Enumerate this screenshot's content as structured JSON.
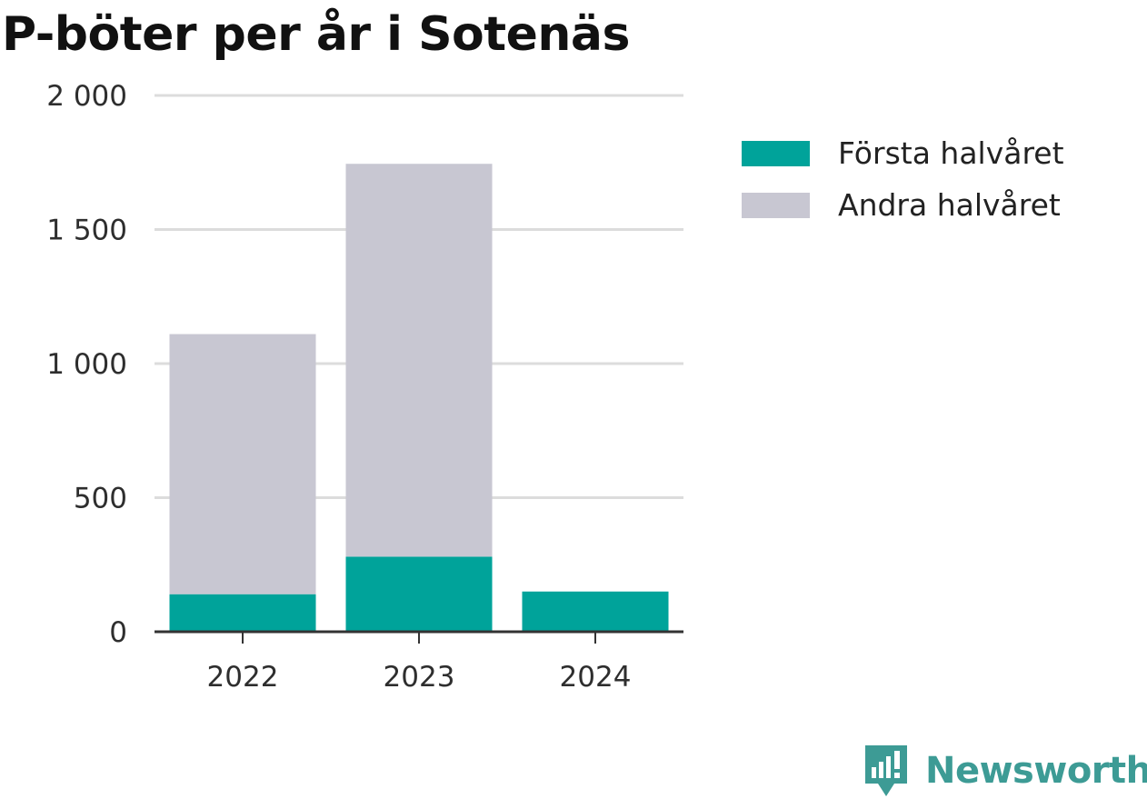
{
  "page": {
    "title": "P-böter per år i Sotenäs"
  },
  "chart_data": {
    "type": "bar",
    "stacked": true,
    "title": "P-böter per år i Sotenäs",
    "xlabel": "",
    "ylabel": "",
    "categories": [
      "2022",
      "2023",
      "2024"
    ],
    "series": [
      {
        "name": "Första halvåret",
        "color": "#00a39a",
        "values": [
          140,
          280,
          150
        ]
      },
      {
        "name": "Andra halvåret",
        "color": "#c8c7d2",
        "values": [
          970,
          1465,
          0
        ]
      }
    ],
    "ylim": [
      0,
      2000
    ],
    "yticks": [
      0,
      500,
      1000,
      1500,
      2000
    ],
    "ytick_labels": [
      "0",
      "500",
      "1 000",
      "1 500",
      "2 000"
    ],
    "grid": true,
    "legend_position": "right"
  },
  "branding": {
    "name": "Newsworthy",
    "icon": "newsworthy-logo-icon",
    "color": "#3d9b95"
  }
}
